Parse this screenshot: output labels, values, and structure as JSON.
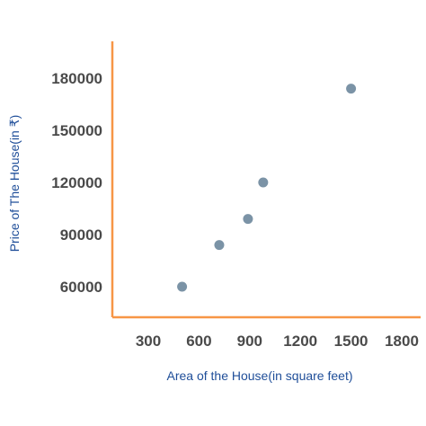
{
  "chart_data": {
    "type": "scatter",
    "title": "",
    "xlabel": "Area of the House(in square feet)",
    "ylabel": "Price of The House(in ₹)",
    "xlim": [
      150,
      1800
    ],
    "ylim": [
      47000,
      192000
    ],
    "xticks": [
      300,
      600,
      900,
      1200,
      1500,
      1800
    ],
    "yticks": [
      60000,
      90000,
      120000,
      150000,
      180000
    ],
    "xtick_labels": [
      "300",
      "600",
      "900",
      "1200",
      "1500",
      "1800"
    ],
    "ytick_labels": [
      "60000",
      "90000",
      "120000",
      "150000",
      "180000"
    ],
    "series": [
      {
        "points": [
          {
            "x": 500,
            "y": 60000
          },
          {
            "x": 720,
            "y": 84000
          },
          {
            "x": 890,
            "y": 99000
          },
          {
            "x": 980,
            "y": 120000
          },
          {
            "x": 1500,
            "y": 174000
          }
        ]
      }
    ],
    "grid": false,
    "legend": "none",
    "colors": {
      "axis": "#f79646",
      "point": "#7b93a6",
      "tick_text": "#4a4a4a",
      "label_text": "#1f4e99"
    }
  }
}
